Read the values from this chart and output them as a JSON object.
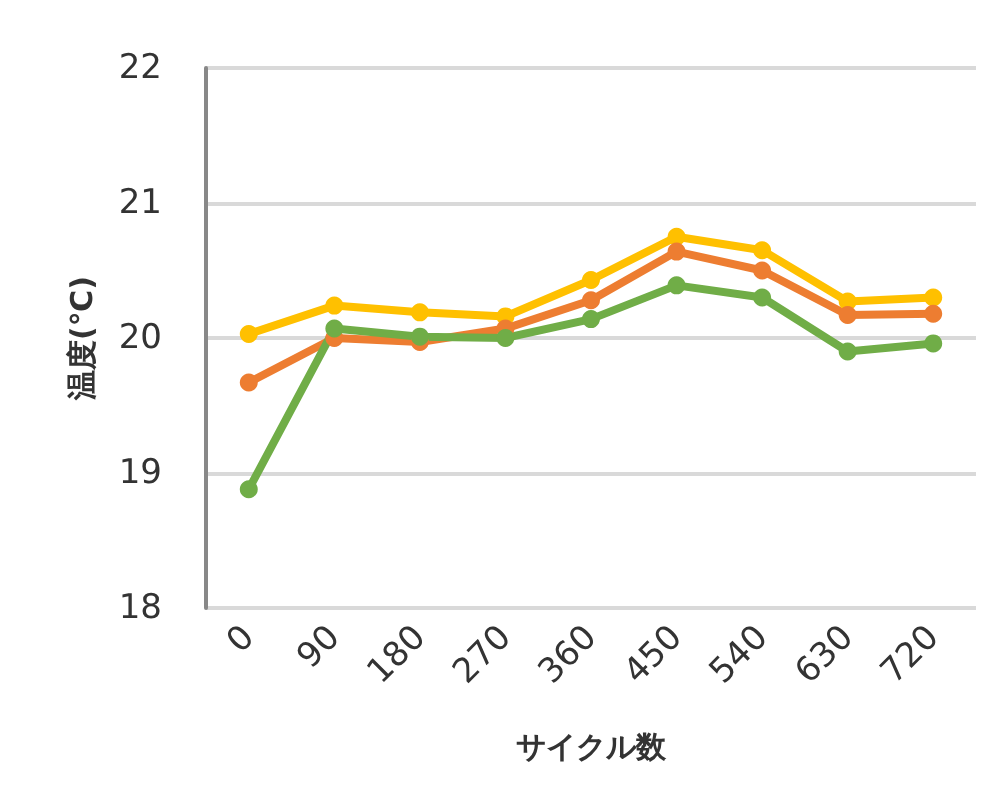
{
  "chart_data": {
    "type": "line",
    "xlabel": "サイクル数",
    "ylabel": "温度(℃)",
    "categories": [
      "0",
      "90",
      "180",
      "270",
      "360",
      "450",
      "540",
      "630",
      "720"
    ],
    "series": [
      {
        "color": "#ffc000",
        "values": [
          20.03,
          20.24,
          20.19,
          20.16,
          20.43,
          20.75,
          20.65,
          20.27,
          20.3
        ]
      },
      {
        "color": "#ed7d31",
        "values": [
          19.67,
          20.0,
          19.97,
          20.07,
          20.28,
          20.64,
          20.5,
          20.17,
          20.18
        ]
      },
      {
        "color": "#70ad47",
        "values": [
          18.88,
          20.07,
          20.01,
          20.0,
          20.14,
          20.39,
          20.3,
          19.9,
          19.96
        ]
      }
    ],
    "ylim": [
      18,
      22
    ],
    "yticks": [
      18,
      19,
      20,
      21,
      22
    ],
    "grid": "y",
    "marker": "circle",
    "line_style": "solid"
  }
}
